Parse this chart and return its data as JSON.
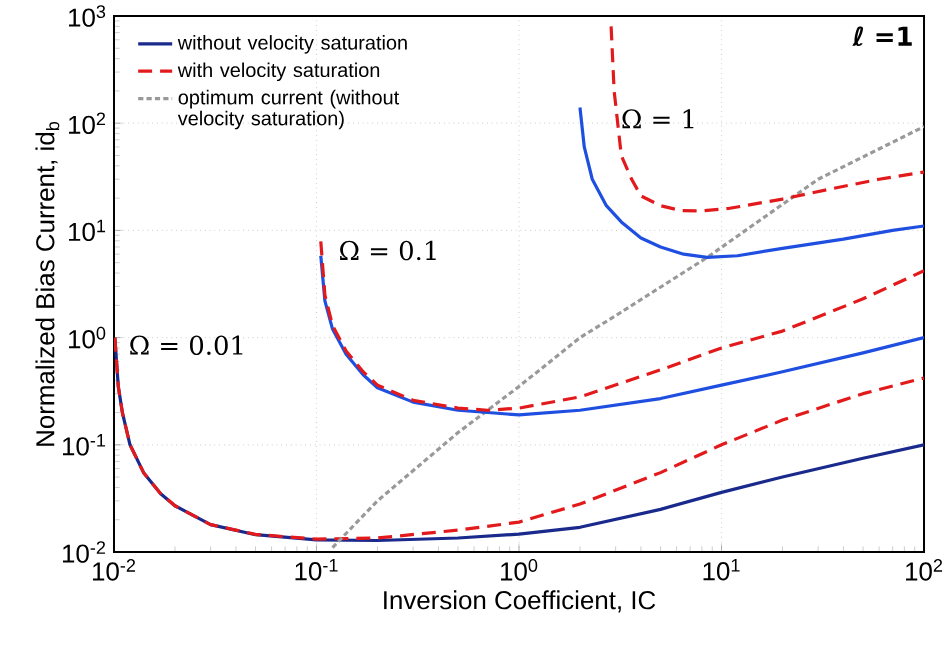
{
  "chart_data": {
    "type": "line",
    "xlabel": "Inversion Coefficient, IC",
    "ylabel": "Normalized Bias Current, id$_{b}$",
    "log": "xy",
    "grid": true,
    "legend": "top left",
    "marker": "none",
    "xlim": [
      0.01,
      100
    ],
    "ylim": [
      0.01,
      1000
    ],
    "xticks": [
      {
        "value": 0.01,
        "label": "10$^{-2}$"
      },
      {
        "value": 0.1,
        "label": "10$^{-1}$"
      },
      {
        "value": 1,
        "label": "10$^{0}$"
      },
      {
        "value": 10,
        "label": "10$^{1}$"
      },
      {
        "value": 100,
        "label": "10$^{2}$"
      }
    ],
    "yticks": [
      {
        "value": 0.01,
        "label": "10$^{-2}$"
      },
      {
        "value": 0.1,
        "label": "10$^{-1}$"
      },
      {
        "value": 1,
        "label": "10$^{0}$"
      },
      {
        "value": 10,
        "label": "10$^{1}$"
      },
      {
        "value": 100,
        "label": "10$^{2}$"
      },
      {
        "value": 1000,
        "label": "10$^{3}$"
      }
    ],
    "series": [
      {
        "name": "without velocity saturation",
        "color": "#1a2a8c",
        "line_style": "solid",
        "x": [
          0.0101,
          0.0105,
          0.011,
          0.012,
          0.014,
          0.017,
          0.02,
          0.03,
          0.05,
          0.1,
          0.2,
          0.5,
          1,
          2,
          5,
          10,
          20,
          50,
          100
        ],
        "values": [
          1.0,
          0.35,
          0.2,
          0.1,
          0.055,
          0.035,
          0.027,
          0.018,
          0.0145,
          0.013,
          0.0128,
          0.0135,
          0.0147,
          0.017,
          0.025,
          0.036,
          0.05,
          0.075,
          0.1
        ]
      },
      {
        "name": "with velocity saturation",
        "color": "#e31a1c",
        "line_style": "dashed",
        "x": [
          0.0101,
          0.0105,
          0.011,
          0.012,
          0.014,
          0.017,
          0.02,
          0.03,
          0.05,
          0.1,
          0.2,
          0.5,
          1,
          2,
          5,
          10,
          20,
          50,
          100
        ],
        "values": [
          1.0,
          0.35,
          0.2,
          0.1,
          0.055,
          0.035,
          0.027,
          0.018,
          0.0146,
          0.0132,
          0.0135,
          0.016,
          0.019,
          0.028,
          0.055,
          0.1,
          0.17,
          0.3,
          0.42
        ]
      },
      {
        "name": "optimum current (without velocity saturation)",
        "color": "#999999",
        "line_style": "dotted",
        "x": [
          0.12,
          0.2,
          0.5,
          1,
          2,
          3,
          8.5,
          30,
          100
        ],
        "values": [
          0.011,
          0.03,
          0.13,
          0.35,
          1.0,
          1.6,
          5.6,
          30,
          93
        ]
      },
      {
        "color": "#1f4fe0",
        "line_style": "solid",
        "x": [
          0.105,
          0.11,
          0.12,
          0.14,
          0.17,
          0.2,
          0.3,
          0.5,
          0.7,
          1,
          2,
          5,
          10,
          20,
          50,
          100
        ],
        "values": [
          5.8,
          2.2,
          1.2,
          0.7,
          0.45,
          0.34,
          0.25,
          0.21,
          0.2,
          0.19,
          0.21,
          0.27,
          0.36,
          0.48,
          0.72,
          1.0
        ]
      },
      {
        "color": "#e31a1c",
        "line_style": "dashed",
        "x": [
          0.105,
          0.11,
          0.12,
          0.14,
          0.17,
          0.2,
          0.3,
          0.5,
          0.7,
          1,
          2,
          5,
          10,
          20,
          50,
          100
        ],
        "values": [
          7.9,
          2.5,
          1.3,
          0.75,
          0.48,
          0.36,
          0.26,
          0.22,
          0.21,
          0.22,
          0.28,
          0.5,
          0.8,
          1.15,
          2.3,
          4.2
        ]
      },
      {
        "color": "#1f4fe0",
        "line_style": "solid",
        "x": [
          2.0,
          2.1,
          2.3,
          2.7,
          3.2,
          4,
          5,
          6.5,
          8.5,
          12,
          20,
          40,
          70,
          100
        ],
        "values": [
          140,
          60,
          30,
          17,
          12,
          8.5,
          7,
          6,
          5.6,
          5.8,
          6.8,
          8.3,
          10,
          11
        ]
      },
      {
        "color": "#e31a1c",
        "line_style": "dashed",
        "x": [
          2.85,
          2.95,
          3.2,
          3.6,
          4.0,
          5,
          6.3,
          8,
          10.8,
          20,
          37,
          60,
          100
        ],
        "values": [
          800,
          200,
          50,
          30,
          21,
          17,
          15.3,
          15.2,
          16,
          19.6,
          25,
          30,
          35
        ]
      }
    ],
    "annotations": [
      {
        "text": "Ω = 0.01",
        "x": 0.0115,
        "y": 0.85
      },
      "Ω = 0.1",
      {
        "text": "Ω = 1",
        "x": 3.1,
        "y": 110
      },
      "ℓ =1"
    ]
  }
}
